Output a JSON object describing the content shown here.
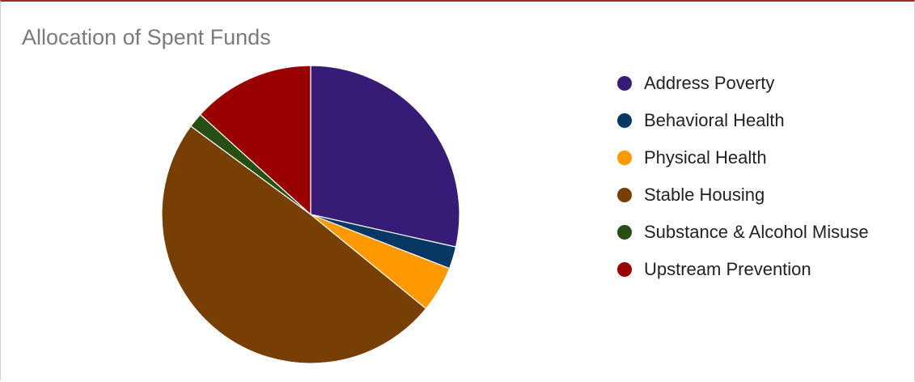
{
  "chart_data": {
    "type": "pie",
    "title": "Allocation of Spent Funds",
    "legend_position": "right",
    "slices": [
      {
        "label": "Address Poverty",
        "value": 28.5,
        "color": "#361c74"
      },
      {
        "label": "Behavioral Health",
        "value": 2.4,
        "color": "#073763"
      },
      {
        "label": "Physical Health",
        "value": 5.0,
        "color": "#ff9900"
      },
      {
        "label": "Stable Housing",
        "value": 49.2,
        "color": "#783f04"
      },
      {
        "label": "Substance & Alcohol Misuse",
        "value": 1.6,
        "color": "#274e13"
      },
      {
        "label": "Upstream Prevention",
        "value": 13.3,
        "color": "#990000"
      }
    ]
  }
}
